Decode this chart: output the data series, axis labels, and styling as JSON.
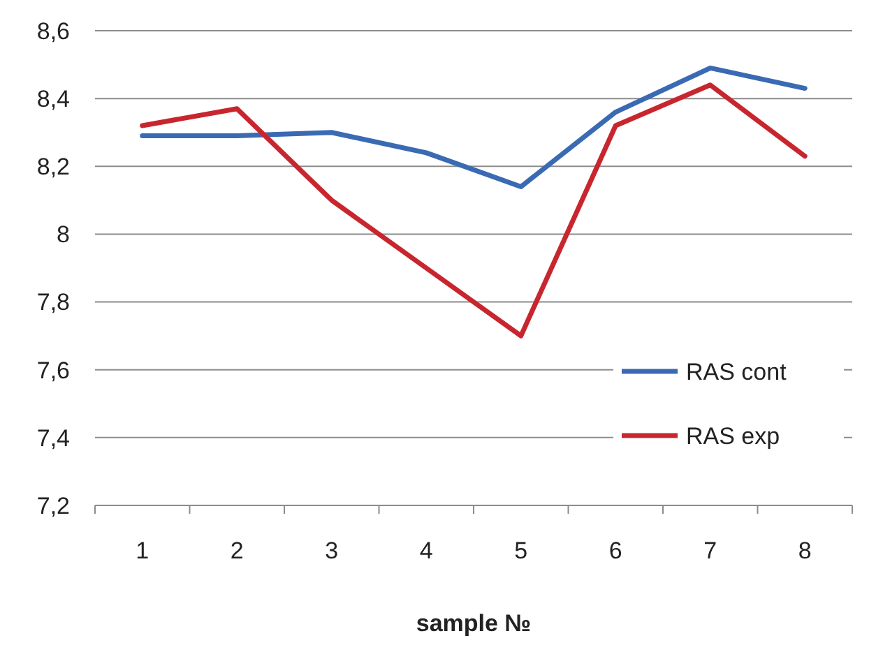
{
  "chart_data": {
    "type": "line",
    "xlabel": "sample №",
    "categories": [
      "1",
      "2",
      "3",
      "4",
      "5",
      "6",
      "7",
      "8"
    ],
    "series": [
      {
        "name": "RAS cont",
        "color": "#3a6ab4",
        "values": [
          8.29,
          8.29,
          8.3,
          8.24,
          8.14,
          8.36,
          8.49,
          8.43
        ]
      },
      {
        "name": "RAS exp",
        "color": "#c8262f",
        "values": [
          8.32,
          8.37,
          8.1,
          7.9,
          7.7,
          8.32,
          8.44,
          8.23
        ]
      }
    ],
    "ylim": [
      7.2,
      8.6
    ],
    "yticks": [
      {
        "value": 7.2,
        "label": "7,2"
      },
      {
        "value": 7.4,
        "label": "7,4"
      },
      {
        "value": 7.6,
        "label": "7,6"
      },
      {
        "value": 7.8,
        "label": "7,8"
      },
      {
        "value": 8,
        "label": "8"
      },
      {
        "value": 8.2,
        "label": "8,2"
      },
      {
        "value": 8.4,
        "label": "8,4"
      },
      {
        "value": 8.6,
        "label": "8,6"
      }
    ],
    "grid": "y",
    "legend": "right",
    "marker": "none",
    "line_style": "solid"
  }
}
